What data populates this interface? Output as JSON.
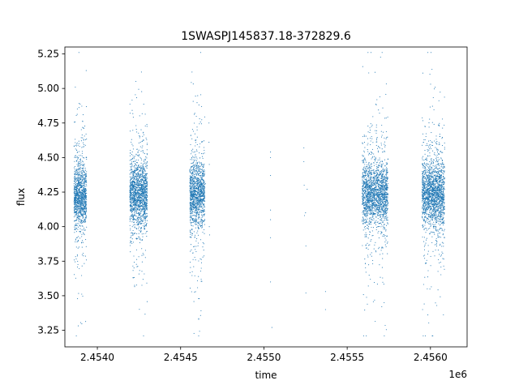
{
  "chart_data": {
    "type": "scatter",
    "title": "1SWASPJ145837.18-372829.6",
    "xlabel": "time",
    "ylabel": "flux",
    "x_offset_label": "1e6",
    "xlim": [
      2453805,
      2456220
    ],
    "ylim": [
      3.13,
      5.3
    ],
    "x_ticks": [
      2453800,
      2454000,
      2454500,
      2455000,
      2455500,
      2456000
    ],
    "x_tick_labels": [
      "",
      "2.4540",
      "2.4545",
      "2.4550",
      "2.4555",
      "2.4560"
    ],
    "y_ticks": [
      3.25,
      3.5,
      3.75,
      4.0,
      4.25,
      4.5,
      4.75,
      5.0,
      5.25
    ],
    "y_tick_labels": [
      "3.25",
      "3.50",
      "3.75",
      "4.00",
      "4.25",
      "4.50",
      "4.75",
      "5.00",
      "5.25"
    ],
    "series_color": "#1f77b4",
    "grid": false,
    "clusters": [
      {
        "x_range": [
          2453860,
          2453935
        ],
        "y_center": 4.22,
        "count": 1200
      },
      {
        "x_range": [
          2454195,
          2454300
        ],
        "y_center": 4.24,
        "count": 1600
      },
      {
        "x_range": [
          2454555,
          2454645
        ],
        "y_center": 4.23,
        "count": 1300
      },
      {
        "x_range": [
          2455590,
          2455745
        ],
        "y_center": 4.24,
        "count": 1900
      },
      {
        "x_range": [
          2455950,
          2456085
        ],
        "y_center": 4.24,
        "count": 1900
      }
    ],
    "sparse_points": [
      {
        "x": 2454670,
        "y": 4.75
      },
      {
        "x": 2454670,
        "y": 4.61
      },
      {
        "x": 2454672,
        "y": 4.45
      },
      {
        "x": 2454672,
        "y": 4.0
      },
      {
        "x": 2454674,
        "y": 3.94
      },
      {
        "x": 2454650,
        "y": 4.31
      },
      {
        "x": 2455040,
        "y": 4.54
      },
      {
        "x": 2455040,
        "y": 4.5
      },
      {
        "x": 2455040,
        "y": 4.37
      },
      {
        "x": 2455040,
        "y": 4.12
      },
      {
        "x": 2455040,
        "y": 4.05
      },
      {
        "x": 2455040,
        "y": 3.92
      },
      {
        "x": 2455040,
        "y": 3.6
      },
      {
        "x": 2455048,
        "y": 3.27
      },
      {
        "x": 2455240,
        "y": 4.57
      },
      {
        "x": 2455240,
        "y": 4.47
      },
      {
        "x": 2455242,
        "y": 4.3
      },
      {
        "x": 2455244,
        "y": 4.08
      },
      {
        "x": 2455250,
        "y": 4.1
      },
      {
        "x": 2455252,
        "y": 3.86
      },
      {
        "x": 2455252,
        "y": 3.52
      },
      {
        "x": 2455260,
        "y": 4.27
      },
      {
        "x": 2455370,
        "y": 3.53
      },
      {
        "x": 2455370,
        "y": 3.4
      }
    ]
  }
}
